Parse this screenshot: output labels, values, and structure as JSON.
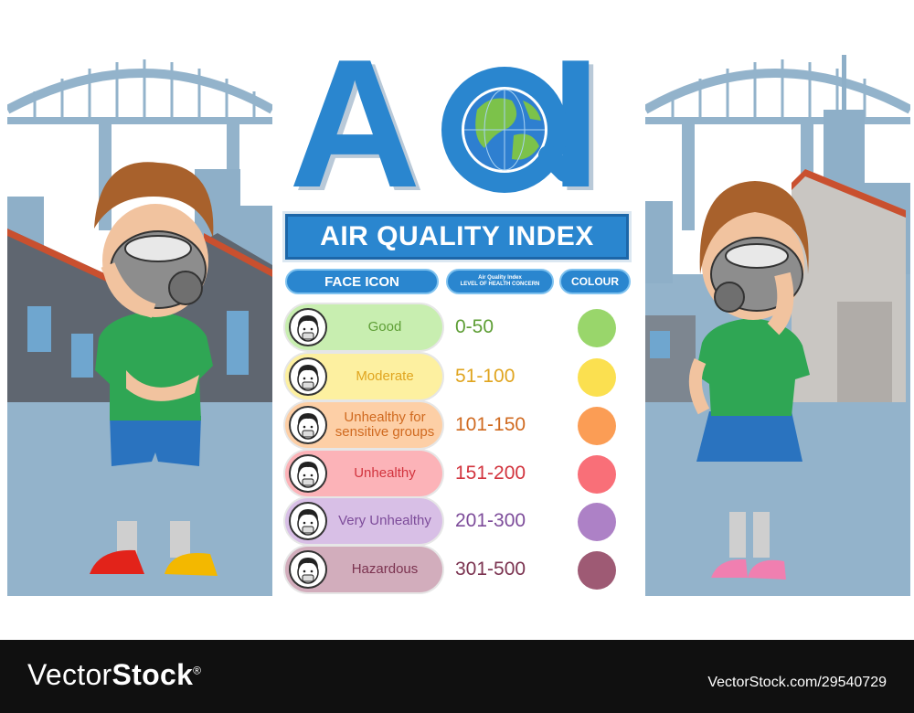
{
  "title": {
    "letters": [
      "A",
      "Q",
      "I"
    ],
    "subtitle": "AIR QUALITY INDEX"
  },
  "columns": {
    "face": "FACE ICON",
    "level_line1": "Air Quality Index",
    "level_line2": "LEVEL OF HEALTH CONCERN",
    "colour": "COLOUR"
  },
  "rows": [
    {
      "label": "Good",
      "range": "0-50",
      "color": "#99d66b",
      "pill": "#c8eeb0",
      "text": "#5e9e35"
    },
    {
      "label": "Moderate",
      "range": "51-100",
      "color": "#fbe050",
      "pill": "#fdf0a0",
      "text": "#e0a520"
    },
    {
      "label": "Unhealthy for sensitive groups",
      "range": "101-150",
      "color": "#fb9d55",
      "pill": "#fdcfa6",
      "text": "#d06a20"
    },
    {
      "label": "Unhealthy",
      "range": "151-200",
      "color": "#f96f78",
      "pill": "#fcb3b8",
      "text": "#d2343e"
    },
    {
      "label": "Very Unhealthy",
      "range": "201-300",
      "color": "#ad81c6",
      "pill": "#d8bfe6",
      "text": "#7d4c9a"
    },
    {
      "label": "Hazardous",
      "range": "301-500",
      "color": "#9e5a74",
      "pill": "#d2adbc",
      "text": "#7b3350"
    }
  ],
  "footer": {
    "brand_light": "Vector",
    "brand_bold": "Stock",
    "brand_mark": "®",
    "stock_id": "VectorStock.com/29540729"
  },
  "icons": {
    "globe": "earth-globe-icon",
    "face": "masked-face-icon",
    "left_person": "boy-with-gas-mask",
    "right_person": "girl-with-gas-mask"
  }
}
